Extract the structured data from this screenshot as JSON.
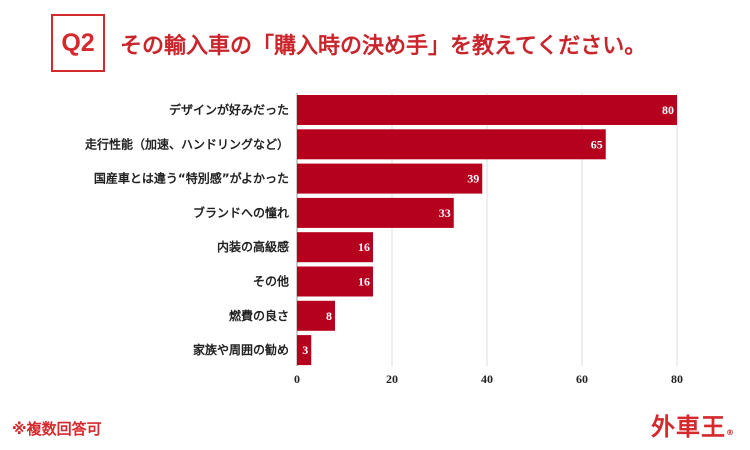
{
  "header": {
    "question_number": "Q2",
    "title": "その輸入車の「購入時の決め手」を教えてください。"
  },
  "footer": {
    "note": "※複数回答可",
    "logo": "外車王",
    "logo_mark": "®"
  },
  "chart_data": {
    "type": "bar",
    "orientation": "horizontal",
    "categories": [
      "デザインが好みだった",
      "走行性能（加速、ハンドリングなど）",
      "国産車とは違う“特別感”がよかった",
      "ブランドへの憧れ",
      "内装の高級感",
      "その他",
      "燃費の良さ",
      "家族や周囲の勧め"
    ],
    "values": [
      80,
      65,
      39,
      33,
      16,
      16,
      8,
      3
    ],
    "xlim": [
      0,
      80
    ],
    "xticks": [
      0,
      20,
      40,
      60,
      80
    ],
    "grid": true,
    "bar_color": "#b5001e",
    "data_labels": true
  }
}
